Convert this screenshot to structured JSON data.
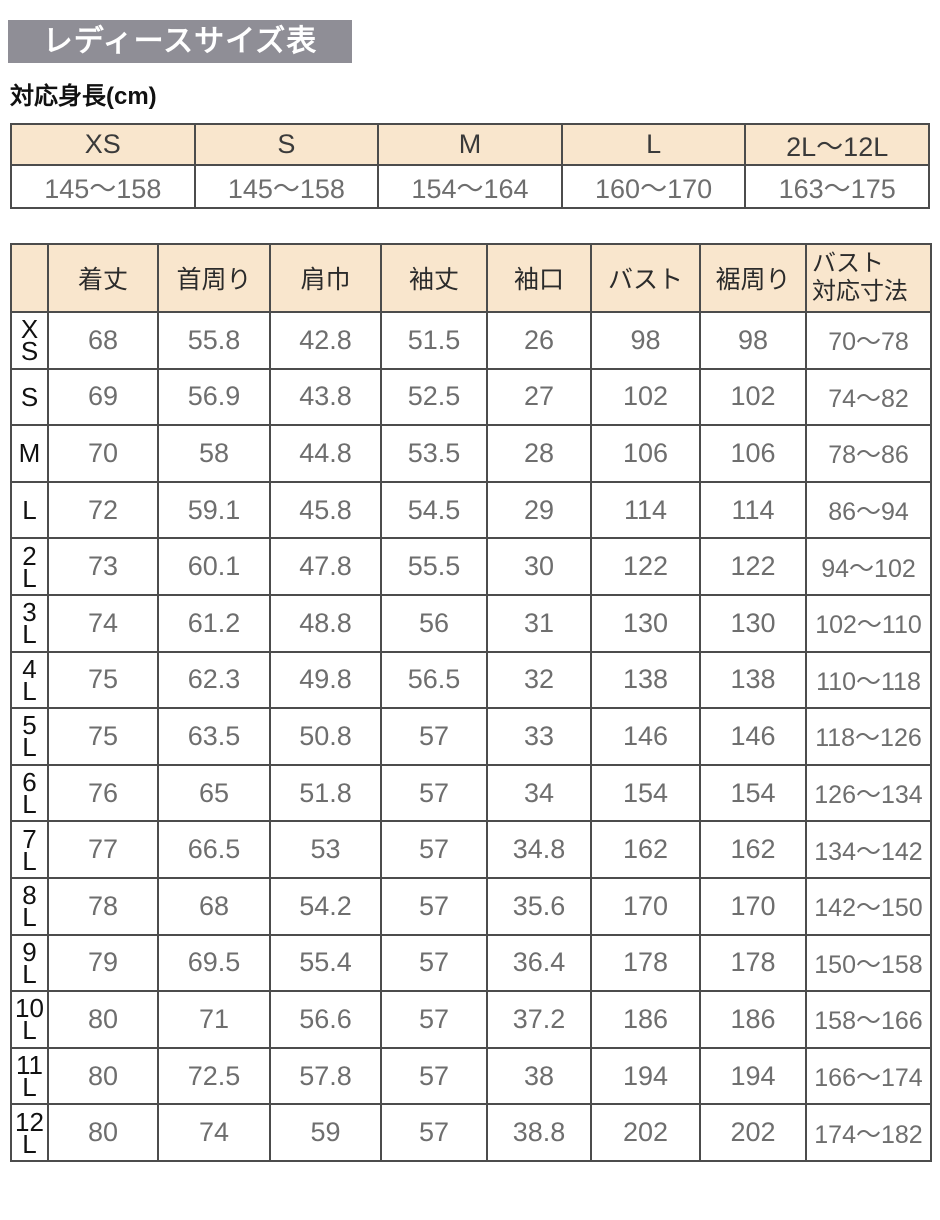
{
  "page": {
    "title": "レディースサイズ表",
    "height_label": "対応身長(cm)"
  },
  "height_table": {
    "columns": [
      "XS",
      "S",
      "M",
      "L",
      "2L〜12L"
    ],
    "values": [
      "145〜158",
      "145〜158",
      "154〜164",
      "160〜170",
      "163〜175"
    ]
  },
  "size_table": {
    "corner_label": "",
    "columns": [
      "着丈",
      "首周り",
      "肩巾",
      "袖丈",
      "袖口",
      "バスト",
      "裾周り",
      "バスト\n対応寸法"
    ],
    "rows": [
      {
        "label": "XS",
        "label_display": "X\nS",
        "values": [
          "68",
          "55.8",
          "42.8",
          "51.5",
          "26",
          "98",
          "98",
          "70〜78"
        ]
      },
      {
        "label": "S",
        "label_display": "S",
        "values": [
          "69",
          "56.9",
          "43.8",
          "52.5",
          "27",
          "102",
          "102",
          "74〜82"
        ]
      },
      {
        "label": "M",
        "label_display": "M",
        "values": [
          "70",
          "58",
          "44.8",
          "53.5",
          "28",
          "106",
          "106",
          "78〜86"
        ]
      },
      {
        "label": "L",
        "label_display": "L",
        "values": [
          "72",
          "59.1",
          "45.8",
          "54.5",
          "29",
          "114",
          "114",
          "86〜94"
        ]
      },
      {
        "label": "2L",
        "label_display": "2\nL",
        "values": [
          "73",
          "60.1",
          "47.8",
          "55.5",
          "30",
          "122",
          "122",
          "94〜102"
        ]
      },
      {
        "label": "3L",
        "label_display": "3\nL",
        "values": [
          "74",
          "61.2",
          "48.8",
          "56",
          "31",
          "130",
          "130",
          "102〜110"
        ]
      },
      {
        "label": "4L",
        "label_display": "4\nL",
        "values": [
          "75",
          "62.3",
          "49.8",
          "56.5",
          "32",
          "138",
          "138",
          "110〜118"
        ]
      },
      {
        "label": "5L",
        "label_display": "5\nL",
        "values": [
          "75",
          "63.5",
          "50.8",
          "57",
          "33",
          "146",
          "146",
          "118〜126"
        ]
      },
      {
        "label": "6L",
        "label_display": "6\nL",
        "values": [
          "76",
          "65",
          "51.8",
          "57",
          "34",
          "154",
          "154",
          "126〜134"
        ]
      },
      {
        "label": "7L",
        "label_display": "7\nL",
        "values": [
          "77",
          "66.5",
          "53",
          "57",
          "34.8",
          "162",
          "162",
          "134〜142"
        ]
      },
      {
        "label": "8L",
        "label_display": "8\nL",
        "values": [
          "78",
          "68",
          "54.2",
          "57",
          "35.6",
          "170",
          "170",
          "142〜150"
        ]
      },
      {
        "label": "9L",
        "label_display": "9\nL",
        "values": [
          "79",
          "69.5",
          "55.4",
          "57",
          "36.4",
          "178",
          "178",
          "150〜158"
        ]
      },
      {
        "label": "10L",
        "label_display": "10\nL",
        "values": [
          "80",
          "71",
          "56.6",
          "57",
          "37.2",
          "186",
          "186",
          "158〜166"
        ]
      },
      {
        "label": "11L",
        "label_display": "11\nL",
        "values": [
          "80",
          "72.5",
          "57.8",
          "57",
          "38",
          "194",
          "194",
          "166〜174"
        ]
      },
      {
        "label": "12L",
        "label_display": "12\nL",
        "values": [
          "80",
          "74",
          "59",
          "57",
          "38.8",
          "202",
          "202",
          "174〜182"
        ]
      }
    ]
  },
  "colors": {
    "title_bg": "#8f8e96",
    "header_bg": "#f9e6cd",
    "border": "#4c4c4c",
    "value_text": "#6e6e6e",
    "label_text": "#1c1c1c"
  }
}
